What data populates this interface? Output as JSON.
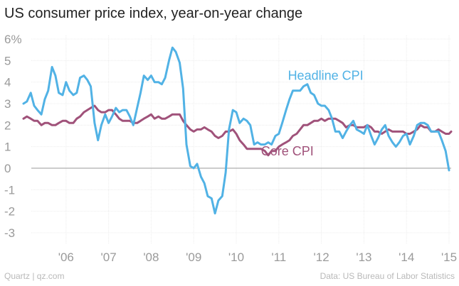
{
  "title": "US consumer price index, year-on-year change",
  "footer": {
    "source_left": "Quartz | qz.com",
    "source_right": "Data: US Bureau of Labor Statistics"
  },
  "chart_data": {
    "type": "line",
    "title": "US consumer price index, year-on-year change",
    "xlabel": "",
    "ylabel": "",
    "ylim": [
      -3,
      6
    ],
    "xlim": [
      2005.0,
      2015.1
    ],
    "y_ticks": [
      {
        "value": 6,
        "label": "6%"
      },
      {
        "value": 5,
        "label": "5"
      },
      {
        "value": 4,
        "label": "4"
      },
      {
        "value": 3,
        "label": "3"
      },
      {
        "value": 2,
        "label": "2"
      },
      {
        "value": 1,
        "label": "1"
      },
      {
        "value": 0,
        "label": "0"
      },
      {
        "value": -1,
        "label": "-1"
      },
      {
        "value": -2,
        "label": "-2"
      },
      {
        "value": -3,
        "label": "-3"
      }
    ],
    "x_ticks": [
      {
        "value": 2006,
        "label": "'06"
      },
      {
        "value": 2007,
        "label": "'07"
      },
      {
        "value": 2008,
        "label": "'08"
      },
      {
        "value": 2009,
        "label": "'09"
      },
      {
        "value": 2010,
        "label": "'10"
      },
      {
        "value": 2011,
        "label": "'11"
      },
      {
        "value": 2012,
        "label": "'12"
      },
      {
        "value": 2013,
        "label": "'13"
      },
      {
        "value": 2014,
        "label": "'14"
      },
      {
        "value": 2015,
        "label": "'15"
      }
    ],
    "series": [
      {
        "name": "Headline CPI",
        "color": "#51b2e5",
        "label_anchor": {
          "x": 2012.1,
          "y": 4.1
        },
        "points": [
          [
            2005.0,
            3.0
          ],
          [
            2005.08,
            3.1
          ],
          [
            2005.17,
            3.5
          ],
          [
            2005.25,
            2.9
          ],
          [
            2005.33,
            2.7
          ],
          [
            2005.42,
            2.5
          ],
          [
            2005.5,
            3.2
          ],
          [
            2005.58,
            3.6
          ],
          [
            2005.67,
            4.7
          ],
          [
            2005.75,
            4.3
          ],
          [
            2005.83,
            3.5
          ],
          [
            2005.92,
            3.4
          ],
          [
            2006.0,
            4.0
          ],
          [
            2006.08,
            3.6
          ],
          [
            2006.17,
            3.4
          ],
          [
            2006.25,
            3.5
          ],
          [
            2006.33,
            4.2
          ],
          [
            2006.42,
            4.3
          ],
          [
            2006.5,
            4.1
          ],
          [
            2006.58,
            3.8
          ],
          [
            2006.67,
            2.1
          ],
          [
            2006.75,
            1.3
          ],
          [
            2006.83,
            2.0
          ],
          [
            2006.92,
            2.5
          ],
          [
            2007.0,
            2.1
          ],
          [
            2007.08,
            2.4
          ],
          [
            2007.17,
            2.8
          ],
          [
            2007.25,
            2.6
          ],
          [
            2007.33,
            2.7
          ],
          [
            2007.42,
            2.7
          ],
          [
            2007.5,
            2.4
          ],
          [
            2007.58,
            2.0
          ],
          [
            2007.67,
            2.8
          ],
          [
            2007.75,
            3.5
          ],
          [
            2007.83,
            4.3
          ],
          [
            2007.92,
            4.1
          ],
          [
            2008.0,
            4.3
          ],
          [
            2008.08,
            4.0
          ],
          [
            2008.17,
            4.0
          ],
          [
            2008.25,
            3.9
          ],
          [
            2008.33,
            4.2
          ],
          [
            2008.42,
            5.0
          ],
          [
            2008.5,
            5.6
          ],
          [
            2008.58,
            5.4
          ],
          [
            2008.67,
            4.9
          ],
          [
            2008.75,
            3.7
          ],
          [
            2008.83,
            1.1
          ],
          [
            2008.92,
            0.1
          ],
          [
            2009.0,
            0.0
          ],
          [
            2009.08,
            0.2
          ],
          [
            2009.17,
            -0.4
          ],
          [
            2009.25,
            -0.7
          ],
          [
            2009.33,
            -1.3
          ],
          [
            2009.42,
            -1.4
          ],
          [
            2009.5,
            -2.1
          ],
          [
            2009.58,
            -1.5
          ],
          [
            2009.67,
            -1.3
          ],
          [
            2009.75,
            -0.2
          ],
          [
            2009.83,
            1.8
          ],
          [
            2009.92,
            2.7
          ],
          [
            2010.0,
            2.6
          ],
          [
            2010.08,
            2.1
          ],
          [
            2010.17,
            2.3
          ],
          [
            2010.25,
            2.2
          ],
          [
            2010.33,
            2.0
          ],
          [
            2010.42,
            1.1
          ],
          [
            2010.5,
            1.2
          ],
          [
            2010.58,
            1.1
          ],
          [
            2010.67,
            1.1
          ],
          [
            2010.75,
            1.2
          ],
          [
            2010.83,
            1.1
          ],
          [
            2010.92,
            1.5
          ],
          [
            2011.0,
            1.6
          ],
          [
            2011.08,
            2.1
          ],
          [
            2011.17,
            2.7
          ],
          [
            2011.25,
            3.2
          ],
          [
            2011.33,
            3.6
          ],
          [
            2011.42,
            3.6
          ],
          [
            2011.5,
            3.6
          ],
          [
            2011.58,
            3.8
          ],
          [
            2011.67,
            3.9
          ],
          [
            2011.75,
            3.5
          ],
          [
            2011.83,
            3.4
          ],
          [
            2011.92,
            3.0
          ],
          [
            2012.0,
            2.9
          ],
          [
            2012.08,
            2.9
          ],
          [
            2012.17,
            2.7
          ],
          [
            2012.25,
            2.3
          ],
          [
            2012.33,
            1.7
          ],
          [
            2012.42,
            1.7
          ],
          [
            2012.5,
            1.4
          ],
          [
            2012.58,
            1.7
          ],
          [
            2012.67,
            2.0
          ],
          [
            2012.75,
            2.2
          ],
          [
            2012.83,
            1.8
          ],
          [
            2012.92,
            1.7
          ],
          [
            2013.0,
            1.6
          ],
          [
            2013.08,
            2.0
          ],
          [
            2013.17,
            1.5
          ],
          [
            2013.25,
            1.1
          ],
          [
            2013.33,
            1.4
          ],
          [
            2013.42,
            1.8
          ],
          [
            2013.5,
            2.0
          ],
          [
            2013.58,
            1.5
          ],
          [
            2013.67,
            1.2
          ],
          [
            2013.75,
            1.0
          ],
          [
            2013.83,
            1.2
          ],
          [
            2013.92,
            1.5
          ],
          [
            2014.0,
            1.6
          ],
          [
            2014.08,
            1.1
          ],
          [
            2014.17,
            1.5
          ],
          [
            2014.25,
            2.0
          ],
          [
            2014.33,
            2.1
          ],
          [
            2014.42,
            2.1
          ],
          [
            2014.5,
            2.0
          ],
          [
            2014.58,
            1.7
          ],
          [
            2014.67,
            1.7
          ],
          [
            2014.75,
            1.7
          ],
          [
            2014.83,
            1.3
          ],
          [
            2014.92,
            0.8
          ],
          [
            2015.0,
            -0.1
          ]
        ]
      },
      {
        "name": "Core CPI",
        "color": "#a0527a",
        "label_anchor": {
          "x": 2011.2,
          "y": 0.6
        },
        "points": [
          [
            2005.0,
            2.3
          ],
          [
            2005.08,
            2.4
          ],
          [
            2005.17,
            2.3
          ],
          [
            2005.25,
            2.2
          ],
          [
            2005.33,
            2.2
          ],
          [
            2005.42,
            2.0
          ],
          [
            2005.5,
            2.1
          ],
          [
            2005.58,
            2.1
          ],
          [
            2005.67,
            2.0
          ],
          [
            2005.75,
            2.0
          ],
          [
            2005.83,
            2.1
          ],
          [
            2005.92,
            2.2
          ],
          [
            2006.0,
            2.2
          ],
          [
            2006.08,
            2.1
          ],
          [
            2006.17,
            2.1
          ],
          [
            2006.25,
            2.3
          ],
          [
            2006.33,
            2.4
          ],
          [
            2006.42,
            2.6
          ],
          [
            2006.5,
            2.7
          ],
          [
            2006.58,
            2.8
          ],
          [
            2006.67,
            2.9
          ],
          [
            2006.75,
            2.7
          ],
          [
            2006.83,
            2.6
          ],
          [
            2006.92,
            2.6
          ],
          [
            2007.0,
            2.7
          ],
          [
            2007.08,
            2.7
          ],
          [
            2007.17,
            2.5
          ],
          [
            2007.25,
            2.3
          ],
          [
            2007.33,
            2.2
          ],
          [
            2007.42,
            2.2
          ],
          [
            2007.5,
            2.2
          ],
          [
            2007.58,
            2.1
          ],
          [
            2007.67,
            2.1
          ],
          [
            2007.75,
            2.2
          ],
          [
            2007.83,
            2.3
          ],
          [
            2007.92,
            2.4
          ],
          [
            2008.0,
            2.5
          ],
          [
            2008.08,
            2.3
          ],
          [
            2008.17,
            2.4
          ],
          [
            2008.25,
            2.3
          ],
          [
            2008.33,
            2.3
          ],
          [
            2008.42,
            2.4
          ],
          [
            2008.5,
            2.5
          ],
          [
            2008.58,
            2.5
          ],
          [
            2008.67,
            2.5
          ],
          [
            2008.75,
            2.2
          ],
          [
            2008.83,
            2.0
          ],
          [
            2008.92,
            1.8
          ],
          [
            2009.0,
            1.7
          ],
          [
            2009.08,
            1.8
          ],
          [
            2009.17,
            1.8
          ],
          [
            2009.25,
            1.9
          ],
          [
            2009.33,
            1.8
          ],
          [
            2009.42,
            1.7
          ],
          [
            2009.5,
            1.5
          ],
          [
            2009.58,
            1.4
          ],
          [
            2009.67,
            1.5
          ],
          [
            2009.75,
            1.7
          ],
          [
            2009.83,
            1.7
          ],
          [
            2009.92,
            1.8
          ],
          [
            2010.0,
            1.6
          ],
          [
            2010.08,
            1.3
          ],
          [
            2010.17,
            1.1
          ],
          [
            2010.25,
            0.9
          ],
          [
            2010.33,
            0.9
          ],
          [
            2010.42,
            0.9
          ],
          [
            2010.5,
            0.9
          ],
          [
            2010.58,
            0.9
          ],
          [
            2010.67,
            0.8
          ],
          [
            2010.75,
            0.6
          ],
          [
            2010.83,
            0.8
          ],
          [
            2010.92,
            0.8
          ],
          [
            2011.0,
            1.0
          ],
          [
            2011.08,
            1.1
          ],
          [
            2011.17,
            1.2
          ],
          [
            2011.25,
            1.3
          ],
          [
            2011.33,
            1.5
          ],
          [
            2011.42,
            1.6
          ],
          [
            2011.5,
            1.8
          ],
          [
            2011.58,
            2.0
          ],
          [
            2011.67,
            2.0
          ],
          [
            2011.75,
            2.1
          ],
          [
            2011.83,
            2.2
          ],
          [
            2011.92,
            2.2
          ],
          [
            2012.0,
            2.3
          ],
          [
            2012.08,
            2.2
          ],
          [
            2012.17,
            2.3
          ],
          [
            2012.25,
            2.3
          ],
          [
            2012.33,
            2.3
          ],
          [
            2012.42,
            2.2
          ],
          [
            2012.5,
            2.1
          ],
          [
            2012.58,
            1.9
          ],
          [
            2012.67,
            2.0
          ],
          [
            2012.75,
            2.0
          ],
          [
            2012.83,
            1.9
          ],
          [
            2012.92,
            1.9
          ],
          [
            2013.0,
            1.9
          ],
          [
            2013.08,
            2.0
          ],
          [
            2013.17,
            1.9
          ],
          [
            2013.25,
            1.7
          ],
          [
            2013.33,
            1.7
          ],
          [
            2013.42,
            1.6
          ],
          [
            2013.5,
            1.7
          ],
          [
            2013.58,
            1.8
          ],
          [
            2013.67,
            1.7
          ],
          [
            2013.75,
            1.7
          ],
          [
            2013.83,
            1.7
          ],
          [
            2013.92,
            1.7
          ],
          [
            2014.0,
            1.6
          ],
          [
            2014.08,
            1.6
          ],
          [
            2014.17,
            1.7
          ],
          [
            2014.25,
            1.8
          ],
          [
            2014.33,
            2.0
          ],
          [
            2014.42,
            1.9
          ],
          [
            2014.5,
            1.9
          ],
          [
            2014.58,
            1.7
          ],
          [
            2014.67,
            1.7
          ],
          [
            2014.75,
            1.8
          ],
          [
            2014.83,
            1.7
          ],
          [
            2014.92,
            1.6
          ],
          [
            2015.0,
            1.6
          ],
          [
            2015.05,
            1.7
          ]
        ]
      }
    ]
  }
}
